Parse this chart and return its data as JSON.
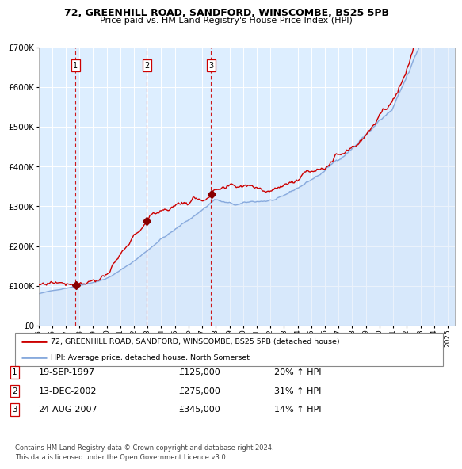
{
  "title1": "72, GREENHILL ROAD, SANDFORD, WINSCOMBE, BS25 5PB",
  "title2": "Price paid vs. HM Land Registry's House Price Index (HPI)",
  "legend_line1": "72, GREENHILL ROAD, SANDFORD, WINSCOMBE, BS25 5PB (detached house)",
  "legend_line2": "HPI: Average price, detached house, North Somerset",
  "transactions": [
    {
      "num": 1,
      "date": "19-SEP-1997",
      "price": 125000,
      "hpi_pct": "20%",
      "x_year": 1997.72
    },
    {
      "num": 2,
      "date": "13-DEC-2002",
      "price": 275000,
      "hpi_pct": "31%",
      "x_year": 2002.95
    },
    {
      "num": 3,
      "date": "24-AUG-2007",
      "price": 345000,
      "hpi_pct": "14%",
      "x_year": 2007.64
    }
  ],
  "red_line_color": "#cc0000",
  "blue_line_color": "#88aadd",
  "blue_fill_color": "#ccddf5",
  "bg_color": "#ddeeff",
  "grid_color": "#ffffff",
  "vline_color": "#cc0000",
  "marker_color": "#880000",
  "note": "Contains HM Land Registry data © Crown copyright and database right 2024.\nThis data is licensed under the Open Government Licence v3.0.",
  "ylim": [
    0,
    700000
  ],
  "xlim_start": 1995.0,
  "xlim_end": 2025.5,
  "x_ticks": [
    1995,
    1996,
    1997,
    1998,
    1999,
    2000,
    2001,
    2002,
    2003,
    2004,
    2005,
    2006,
    2007,
    2008,
    2009,
    2010,
    2011,
    2012,
    2013,
    2014,
    2015,
    2016,
    2017,
    2018,
    2019,
    2020,
    2021,
    2022,
    2023,
    2024,
    2025
  ]
}
